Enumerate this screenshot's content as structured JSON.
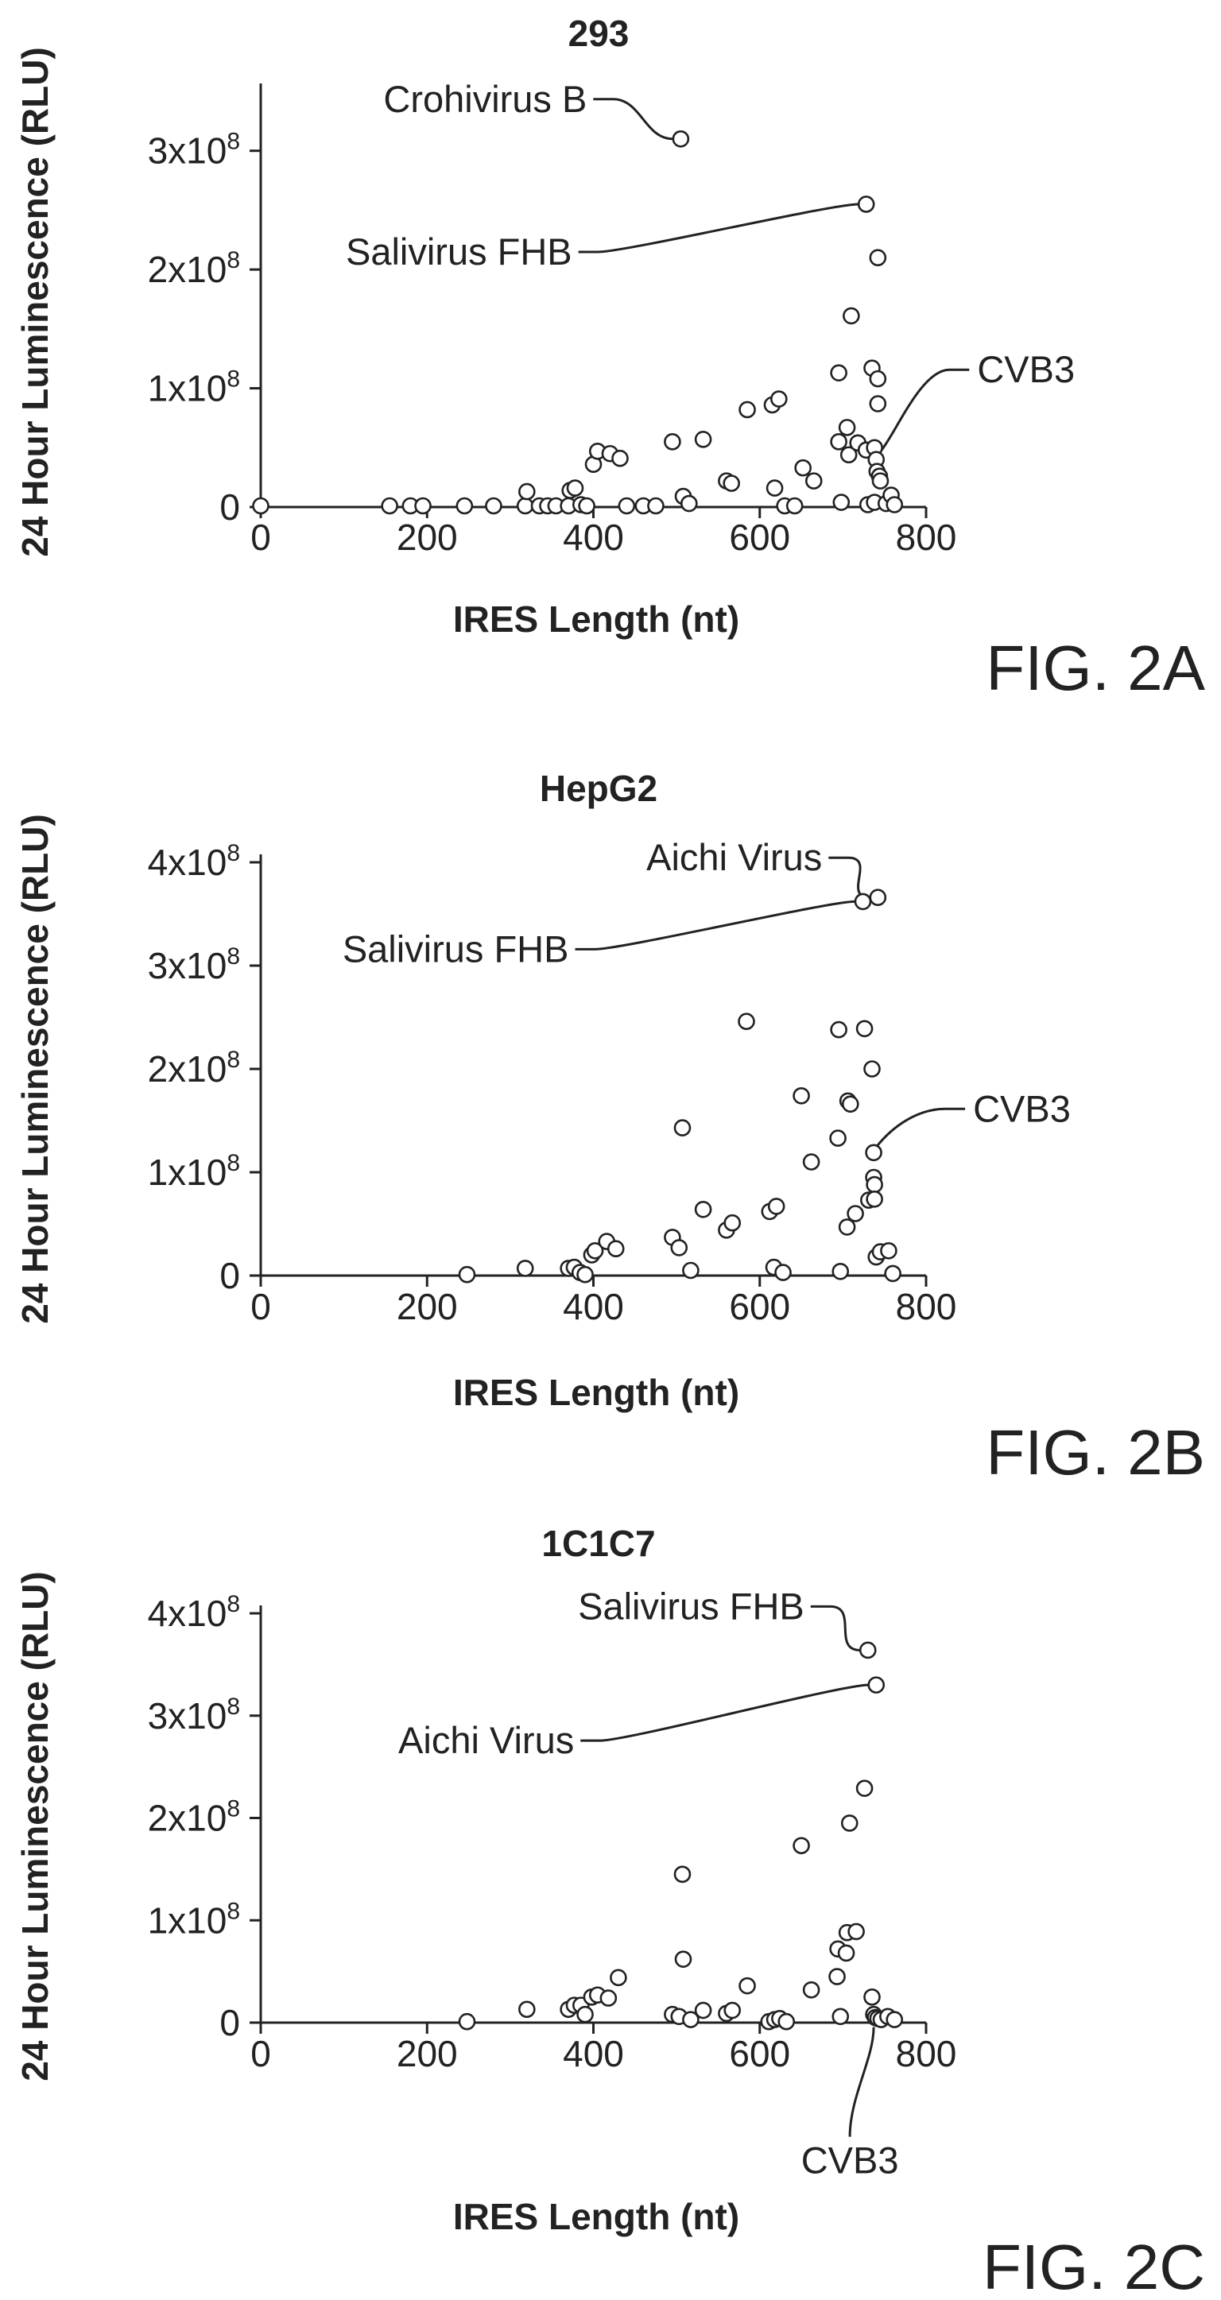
{
  "chart_data": [
    {
      "type": "scatter",
      "title": "293",
      "figure_label": "FIG. 2A",
      "xlabel": "IRES Length (nt)",
      "ylabel": "24 Hour Luminescence (RLU)",
      "xlim": [
        0,
        800
      ],
      "ylim": [
        0,
        350000000
      ],
      "x_ticks": [
        0,
        200,
        400,
        600,
        800
      ],
      "x_tick_labels": [
        "0",
        "200",
        "400",
        "600",
        "800"
      ],
      "y_ticks": [
        0,
        100000000,
        200000000,
        300000000
      ],
      "y_tick_labels": [
        {
          "mantissa": "0",
          "exponent": ""
        },
        {
          "mantissa": "1x10",
          "exponent": "8"
        },
        {
          "mantissa": "2x10",
          "exponent": "8"
        },
        {
          "mantissa": "3x10",
          "exponent": "8"
        }
      ],
      "grid": false,
      "points": [
        {
          "x": 0,
          "y": 1000000
        },
        {
          "x": 155,
          "y": 1000000
        },
        {
          "x": 180,
          "y": 1000000
        },
        {
          "x": 195,
          "y": 1000000
        },
        {
          "x": 245,
          "y": 1000000
        },
        {
          "x": 280,
          "y": 1000000
        },
        {
          "x": 318,
          "y": 1000000
        },
        {
          "x": 320,
          "y": 13000000
        },
        {
          "x": 335,
          "y": 1000000
        },
        {
          "x": 345,
          "y": 1000000
        },
        {
          "x": 355,
          "y": 1000000
        },
        {
          "x": 370,
          "y": 1000000
        },
        {
          "x": 372,
          "y": 14000000
        },
        {
          "x": 378,
          "y": 16000000
        },
        {
          "x": 385,
          "y": 2000000
        },
        {
          "x": 392,
          "y": 1000000
        },
        {
          "x": 400,
          "y": 36000000
        },
        {
          "x": 405,
          "y": 47000000
        },
        {
          "x": 420,
          "y": 45000000
        },
        {
          "x": 432,
          "y": 41000000
        },
        {
          "x": 440,
          "y": 1000000
        },
        {
          "x": 460,
          "y": 1000000
        },
        {
          "x": 475,
          "y": 1000000
        },
        {
          "x": 495,
          "y": 55000000
        },
        {
          "x": 505,
          "y": 310000000
        },
        {
          "x": 508,
          "y": 9000000
        },
        {
          "x": 515,
          "y": 3000000
        },
        {
          "x": 532,
          "y": 57000000
        },
        {
          "x": 560,
          "y": 22000000
        },
        {
          "x": 566,
          "y": 20000000
        },
        {
          "x": 585,
          "y": 82000000
        },
        {
          "x": 615,
          "y": 86000000
        },
        {
          "x": 618,
          "y": 16000000
        },
        {
          "x": 623,
          "y": 91000000
        },
        {
          "x": 630,
          "y": 1000000
        },
        {
          "x": 642,
          "y": 1000000
        },
        {
          "x": 652,
          "y": 33000000
        },
        {
          "x": 665,
          "y": 22000000
        },
        {
          "x": 695,
          "y": 113000000
        },
        {
          "x": 695,
          "y": 55000000
        },
        {
          "x": 698,
          "y": 4000000
        },
        {
          "x": 705,
          "y": 67000000
        },
        {
          "x": 707,
          "y": 44000000
        },
        {
          "x": 710,
          "y": 161000000
        },
        {
          "x": 718,
          "y": 54000000
        },
        {
          "x": 728,
          "y": 255000000
        },
        {
          "x": 728,
          "y": 48000000
        },
        {
          "x": 730,
          "y": 2000000
        },
        {
          "x": 735,
          "y": 117000000
        },
        {
          "x": 738,
          "y": 50000000
        },
        {
          "x": 738,
          "y": 4000000
        },
        {
          "x": 740,
          "y": 40000000
        },
        {
          "x": 741,
          "y": 30000000
        },
        {
          "x": 742,
          "y": 210000000
        },
        {
          "x": 742,
          "y": 108000000
        },
        {
          "x": 742,
          "y": 87000000
        },
        {
          "x": 744,
          "y": 26000000
        },
        {
          "x": 745,
          "y": 22000000
        },
        {
          "x": 752,
          "y": 3000000
        },
        {
          "x": 758,
          "y": 10000000
        },
        {
          "x": 762,
          "y": 2000000
        }
      ],
      "annotations": [
        {
          "label": "Crohivirus B",
          "x": 505,
          "y": 310000000
        },
        {
          "label": "Salivirus FHB",
          "x": 728,
          "y": 255000000
        },
        {
          "label": "CVB3",
          "x": 742,
          "y": 42000000
        }
      ]
    },
    {
      "type": "scatter",
      "title": "HepG2",
      "figure_label": "FIG. 2B",
      "xlabel": "IRES Length (nt)",
      "ylabel": "24 Hour Luminescence (RLU)",
      "xlim": [
        0,
        800
      ],
      "ylim": [
        0,
        400000000
      ],
      "x_ticks": [
        0,
        200,
        400,
        600,
        800
      ],
      "x_tick_labels": [
        "0",
        "200",
        "400",
        "600",
        "800"
      ],
      "y_ticks": [
        0,
        100000000,
        200000000,
        300000000,
        400000000
      ],
      "y_tick_labels": [
        {
          "mantissa": "0",
          "exponent": ""
        },
        {
          "mantissa": "1x10",
          "exponent": "8"
        },
        {
          "mantissa": "2x10",
          "exponent": "8"
        },
        {
          "mantissa": "3x10",
          "exponent": "8"
        },
        {
          "mantissa": "4x10",
          "exponent": "8"
        }
      ],
      "grid": false,
      "points": [
        {
          "x": 248,
          "y": 1000000
        },
        {
          "x": 318,
          "y": 7000000
        },
        {
          "x": 370,
          "y": 7000000
        },
        {
          "x": 377,
          "y": 8000000
        },
        {
          "x": 384,
          "y": 3000000
        },
        {
          "x": 390,
          "y": 1000000
        },
        {
          "x": 398,
          "y": 20000000
        },
        {
          "x": 402,
          "y": 24000000
        },
        {
          "x": 416,
          "y": 33000000
        },
        {
          "x": 427,
          "y": 26000000
        },
        {
          "x": 495,
          "y": 37000000
        },
        {
          "x": 503,
          "y": 27000000
        },
        {
          "x": 507,
          "y": 143000000
        },
        {
          "x": 517,
          "y": 5000000
        },
        {
          "x": 532,
          "y": 64000000
        },
        {
          "x": 560,
          "y": 44000000
        },
        {
          "x": 567,
          "y": 51000000
        },
        {
          "x": 584,
          "y": 246000000
        },
        {
          "x": 612,
          "y": 62000000
        },
        {
          "x": 617,
          "y": 8000000
        },
        {
          "x": 620,
          "y": 67000000
        },
        {
          "x": 628,
          "y": 3000000
        },
        {
          "x": 650,
          "y": 174000000
        },
        {
          "x": 662,
          "y": 110000000
        },
        {
          "x": 694,
          "y": 133000000
        },
        {
          "x": 695,
          "y": 238000000
        },
        {
          "x": 697,
          "y": 4000000
        },
        {
          "x": 705,
          "y": 47000000
        },
        {
          "x": 706,
          "y": 169000000
        },
        {
          "x": 709,
          "y": 166000000
        },
        {
          "x": 715,
          "y": 60000000
        },
        {
          "x": 724,
          "y": 362000000
        },
        {
          "x": 726,
          "y": 239000000
        },
        {
          "x": 731,
          "y": 73000000
        },
        {
          "x": 735,
          "y": 200000000
        },
        {
          "x": 737,
          "y": 119000000
        },
        {
          "x": 737,
          "y": 95000000
        },
        {
          "x": 738,
          "y": 88000000
        },
        {
          "x": 738,
          "y": 74000000
        },
        {
          "x": 740,
          "y": 18000000
        },
        {
          "x": 742,
          "y": 366000000
        },
        {
          "x": 745,
          "y": 23000000
        },
        {
          "x": 755,
          "y": 24000000
        },
        {
          "x": 760,
          "y": 2000000
        }
      ],
      "annotations": [
        {
          "label": "Aichi Virus",
          "x": 742,
          "y": 366000000
        },
        {
          "label": "Salivirus FHB",
          "x": 724,
          "y": 362000000
        },
        {
          "label": "CVB3",
          "x": 737,
          "y": 119000000
        }
      ]
    },
    {
      "type": "scatter",
      "title": "1C1C7",
      "figure_label": "FIG. 2C",
      "xlabel": "IRES Length (nt)",
      "ylabel": "24 Hour Luminescence (RLU)",
      "xlim": [
        0,
        800
      ],
      "ylim": [
        0,
        400000000
      ],
      "x_ticks": [
        0,
        200,
        400,
        600,
        800
      ],
      "x_tick_labels": [
        "0",
        "200",
        "400",
        "600",
        "800"
      ],
      "y_ticks": [
        0,
        100000000,
        200000000,
        300000000,
        400000000
      ],
      "y_tick_labels": [
        {
          "mantissa": "0",
          "exponent": ""
        },
        {
          "mantissa": "1x10",
          "exponent": "8"
        },
        {
          "mantissa": "2x10",
          "exponent": "8"
        },
        {
          "mantissa": "3x10",
          "exponent": "8"
        },
        {
          "mantissa": "4x10",
          "exponent": "8"
        }
      ],
      "grid": false,
      "points": [
        {
          "x": 248,
          "y": 1000000
        },
        {
          "x": 320,
          "y": 13000000
        },
        {
          "x": 370,
          "y": 13000000
        },
        {
          "x": 377,
          "y": 17000000
        },
        {
          "x": 385,
          "y": 17000000
        },
        {
          "x": 390,
          "y": 8000000
        },
        {
          "x": 398,
          "y": 25000000
        },
        {
          "x": 405,
          "y": 27000000
        },
        {
          "x": 418,
          "y": 24000000
        },
        {
          "x": 430,
          "y": 44000000
        },
        {
          "x": 495,
          "y": 8000000
        },
        {
          "x": 503,
          "y": 6000000
        },
        {
          "x": 507,
          "y": 145000000
        },
        {
          "x": 508,
          "y": 62000000
        },
        {
          "x": 517,
          "y": 3000000
        },
        {
          "x": 532,
          "y": 12000000
        },
        {
          "x": 560,
          "y": 9000000
        },
        {
          "x": 567,
          "y": 12000000
        },
        {
          "x": 585,
          "y": 36000000
        },
        {
          "x": 611,
          "y": 1000000
        },
        {
          "x": 618,
          "y": 3000000
        },
        {
          "x": 624,
          "y": 4000000
        },
        {
          "x": 632,
          "y": 1000000
        },
        {
          "x": 650,
          "y": 173000000
        },
        {
          "x": 662,
          "y": 32000000
        },
        {
          "x": 693,
          "y": 45000000
        },
        {
          "x": 694,
          "y": 72000000
        },
        {
          "x": 697,
          "y": 6000000
        },
        {
          "x": 704,
          "y": 68000000
        },
        {
          "x": 705,
          "y": 88000000
        },
        {
          "x": 708,
          "y": 195000000
        },
        {
          "x": 716,
          "y": 89000000
        },
        {
          "x": 726,
          "y": 229000000
        },
        {
          "x": 730,
          "y": 364000000
        },
        {
          "x": 735,
          "y": 25000000
        },
        {
          "x": 737,
          "y": 8000000
        },
        {
          "x": 739,
          "y": 5000000
        },
        {
          "x": 740,
          "y": 330000000
        },
        {
          "x": 742,
          "y": 4000000
        },
        {
          "x": 746,
          "y": 3000000
        },
        {
          "x": 754,
          "y": 6000000
        },
        {
          "x": 762,
          "y": 3000000
        }
      ],
      "annotations": [
        {
          "label": "Salivirus FHB",
          "x": 730,
          "y": 364000000
        },
        {
          "label": "Aichi Virus",
          "x": 740,
          "y": 330000000
        },
        {
          "label": "CVB3",
          "x": 737,
          "y": 5000000
        }
      ]
    }
  ]
}
